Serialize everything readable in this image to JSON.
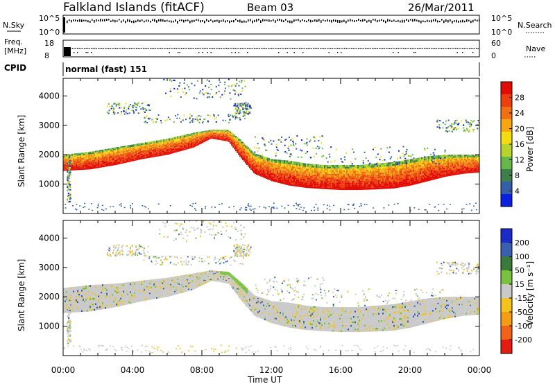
{
  "header": {
    "station": "Falkland Islands (fitACF)",
    "beam": "Beam 03",
    "date": "26/Mar/2011"
  },
  "upper_panels": {
    "nsky_label": "N.Sky",
    "nsearch_label": "N.Search",
    "nsky_ticks": [
      "10^5",
      "10^0"
    ],
    "nsearch_ticks": [
      "10^5",
      "10^0"
    ],
    "freq_label_line1": "Freq.",
    "freq_label_line2": "[MHz]",
    "freq_ticks": [
      "18",
      "8"
    ],
    "nave_label": "Nave",
    "nave_ticks": [
      "60",
      "0"
    ],
    "cpid_label": "CPID",
    "cpid_value": "normal (fast) 151"
  },
  "chart_data": [
    {
      "type": "heatmap",
      "panel": "power",
      "ylabel": "Slant Range [km]",
      "xlabel": "",
      "x_ticks": [
        "00:00",
        "04:00",
        "08:00",
        "12:00",
        "16:00",
        "20:00",
        "00:00"
      ],
      "x_range_hours": [
        0,
        24
      ],
      "y_ticks": [
        1000,
        2000,
        3000,
        4000
      ],
      "ylim": [
        0,
        4600
      ],
      "colorbar": {
        "label": "Power [dB]",
        "ticks": [
          "4",
          "8",
          "12",
          "16",
          "20",
          "24",
          "28"
        ],
        "colors": [
          "#0a1fe0",
          "#3560a8",
          "#3f7f4c",
          "#66b84b",
          "#b9d32e",
          "#f3dc12",
          "#f5a615",
          "#f27014",
          "#ec3f0f",
          "#e20c05"
        ]
      },
      "bands": [
        {
          "x": [
            0.0,
            1.5,
            3.0,
            4.5,
            6.0,
            7.5,
            8.5,
            9.5,
            10.2,
            11.0,
            12.0,
            13.0,
            14.0,
            15.0,
            16.0,
            17.0,
            18.0,
            19.0,
            20.0,
            21.0,
            22.0,
            23.0,
            24.0
          ],
          "lower": [
            1450,
            1500,
            1650,
            1850,
            2000,
            2250,
            2550,
            2450,
            1900,
            1350,
            1100,
            950,
            870,
            830,
            800,
            800,
            820,
            850,
            950,
            1100,
            1250,
            1350,
            1400
          ],
          "upper": [
            2000,
            2100,
            2250,
            2400,
            2550,
            2750,
            2850,
            2850,
            2500,
            2050,
            1850,
            1800,
            1700,
            1650,
            1650,
            1650,
            1700,
            1750,
            1850,
            1950,
            2000,
            2000,
            2000
          ],
          "level": 24
        }
      ]
    },
    {
      "type": "heatmap",
      "panel": "velocity",
      "ylabel": "Slant Range [km]",
      "xlabel": "Time UT",
      "x_ticks": [
        "00:00",
        "04:00",
        "08:00",
        "12:00",
        "16:00",
        "20:00",
        "00:00"
      ],
      "x_range_hours": [
        0,
        24
      ],
      "y_ticks": [
        1000,
        2000,
        3000,
        4000
      ],
      "ylim": [
        0,
        4600
      ],
      "colorbar": {
        "label": "Velocity [m s⁻¹]",
        "ticks": [
          "200",
          "100",
          "50",
          "15",
          "-15",
          "-50",
          "-100",
          "-200"
        ],
        "colors": [
          "#1a2bc8",
          "#3a5fb0",
          "#3c7a3c",
          "#7ac142",
          "#c9c9c9",
          "#f3c21d",
          "#f39c18",
          "#f0631a",
          "#e41d12"
        ]
      },
      "bands": [
        {
          "x": [
            0.0,
            1.5,
            3.0,
            4.5,
            6.0,
            7.5,
            8.5,
            9.5,
            10.2,
            11.0,
            12.0,
            13.0,
            14.0,
            15.0,
            16.0,
            17.0,
            18.0,
            19.0,
            20.0,
            21.0,
            22.0,
            23.0,
            24.0
          ],
          "lower": [
            1450,
            1500,
            1650,
            1850,
            2000,
            2250,
            2550,
            2450,
            1900,
            1350,
            1100,
            950,
            870,
            830,
            800,
            800,
            820,
            850,
            950,
            1100,
            1250,
            1350,
            1400
          ],
          "upper": [
            2300,
            2400,
            2450,
            2550,
            2650,
            2800,
            2900,
            2850,
            2500,
            2050,
            1850,
            1800,
            1700,
            1650,
            1650,
            1650,
            1700,
            1750,
            1850,
            1950,
            2000,
            2000,
            2000
          ],
          "level": 0
        }
      ]
    }
  ]
}
